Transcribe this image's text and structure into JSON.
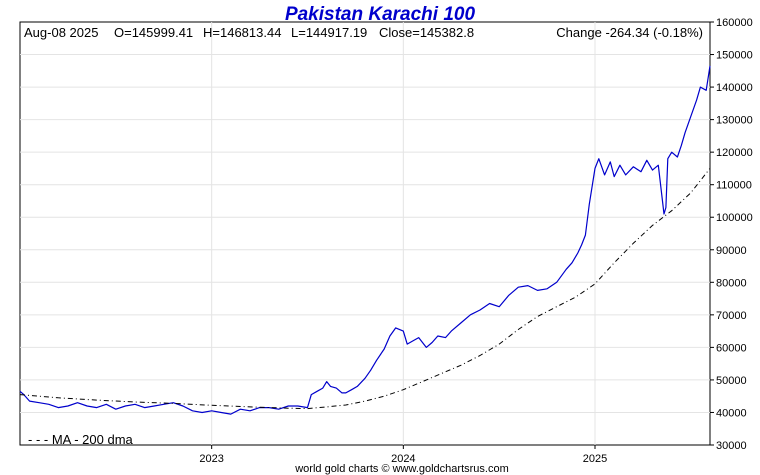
{
  "chart_data": {
    "type": "line",
    "title": "Pakistan Karachi 100",
    "title_color": "#0000cc",
    "header": {
      "date": "Aug-08  2025",
      "open": "O=145999.41",
      "high": "H=146813.44",
      "low": "L=144917.19",
      "close": "Close=145382.8",
      "change": "Change -264.34 (-0.18%)"
    },
    "x_tick_labels": [
      "2023",
      "2024",
      "2025"
    ],
    "x_ticks": [
      2023.0,
      2024.0,
      2025.0
    ],
    "xlim": [
      2022.0,
      2025.6
    ],
    "ylim": [
      30000,
      160000
    ],
    "y_ticks": [
      30000,
      40000,
      50000,
      60000,
      70000,
      80000,
      90000,
      100000,
      110000,
      120000,
      130000,
      140000,
      150000,
      160000
    ],
    "y_tick_labels": [
      "30000",
      "40000",
      "50000",
      "60000",
      "70000",
      "80000",
      "90000",
      "100000",
      "110000",
      "120000",
      "130000",
      "140000",
      "150000",
      "160000"
    ],
    "grid": true,
    "series": [
      {
        "color": "#0000cc",
        "style": "solid",
        "x": [
          2022.0,
          2022.02,
          2022.05,
          2022.1,
          2022.15,
          2022.2,
          2022.25,
          2022.3,
          2022.35,
          2022.4,
          2022.45,
          2022.5,
          2022.55,
          2022.6,
          2022.65,
          2022.7,
          2022.75,
          2022.8,
          2022.85,
          2022.9,
          2022.95,
          2023.0,
          2023.05,
          2023.1,
          2023.15,
          2023.2,
          2023.25,
          2023.3,
          2023.35,
          2023.4,
          2023.45,
          2023.5,
          2023.52,
          2023.55,
          2023.58,
          2023.6,
          2023.62,
          2023.65,
          2023.68,
          2023.7,
          2023.73,
          2023.76,
          2023.8,
          2023.83,
          2023.86,
          2023.9,
          2023.93,
          2023.96,
          2024.0,
          2024.02,
          2024.05,
          2024.08,
          2024.12,
          2024.15,
          2024.18,
          2024.22,
          2024.25,
          2024.3,
          2024.35,
          2024.4,
          2024.45,
          2024.5,
          2024.55,
          2024.6,
          2024.65,
          2024.7,
          2024.75,
          2024.8,
          2024.85,
          2024.88,
          2024.91,
          2024.93,
          2024.95,
          2024.97,
          2025.0,
          2025.02,
          2025.05,
          2025.08,
          2025.1,
          2025.13,
          2025.16,
          2025.2,
          2025.24,
          2025.27,
          2025.3,
          2025.33,
          2025.36,
          2025.37,
          2025.38,
          2025.4,
          2025.43,
          2025.45,
          2025.47,
          2025.5,
          2025.53,
          2025.55,
          2025.58,
          2025.6
        ],
        "y": [
          46500,
          45500,
          43500,
          43000,
          42500,
          41500,
          42000,
          43000,
          42000,
          41500,
          42500,
          41000,
          42000,
          42500,
          41500,
          42000,
          42500,
          43000,
          42000,
          40500,
          40000,
          40500,
          40000,
          39500,
          41000,
          40500,
          41500,
          41500,
          41000,
          42000,
          42000,
          41500,
          45500,
          46500,
          47500,
          49500,
          48000,
          47500,
          46000,
          46000,
          47000,
          48000,
          50500,
          53000,
          56000,
          59500,
          63500,
          66000,
          65000,
          61000,
          62000,
          63000,
          60000,
          61500,
          63500,
          63000,
          65000,
          67500,
          70000,
          71500,
          73500,
          72500,
          76000,
          78500,
          79000,
          77500,
          78000,
          80000,
          84000,
          86000,
          89000,
          91500,
          94500,
          104000,
          115000,
          118000,
          113000,
          117000,
          112500,
          116000,
          113000,
          115500,
          114000,
          117500,
          114500,
          116000,
          101000,
          103000,
          118000,
          120000,
          118500,
          122000,
          126000,
          131000,
          136000,
          140000,
          139000,
          146500
        ]
      },
      {
        "name": "MA - 200 dma",
        "color": "#000000",
        "style": "dashdot",
        "x": [
          2022.0,
          2022.2,
          2022.4,
          2022.6,
          2022.8,
          2023.0,
          2023.2,
          2023.4,
          2023.5,
          2023.6,
          2023.7,
          2023.8,
          2023.9,
          2024.0,
          2024.1,
          2024.2,
          2024.3,
          2024.4,
          2024.5,
          2024.6,
          2024.7,
          2024.8,
          2024.9,
          2025.0,
          2025.1,
          2025.2,
          2025.3,
          2025.4,
          2025.5,
          2025.6
        ],
        "y": [
          45500,
          44500,
          43800,
          43200,
          42800,
          42200,
          41700,
          41300,
          41200,
          41700,
          42300,
          43500,
          45000,
          47000,
          49500,
          52000,
          54500,
          57500,
          61000,
          65500,
          69500,
          72500,
          75500,
          79500,
          86000,
          92000,
          97500,
          102000,
          107500,
          115000
        ]
      }
    ],
    "legend_text": "- - -  MA - 200 dma",
    "legend_position": "bottom-left",
    "footer": "world gold charts © www.goldchartsrus.com"
  }
}
